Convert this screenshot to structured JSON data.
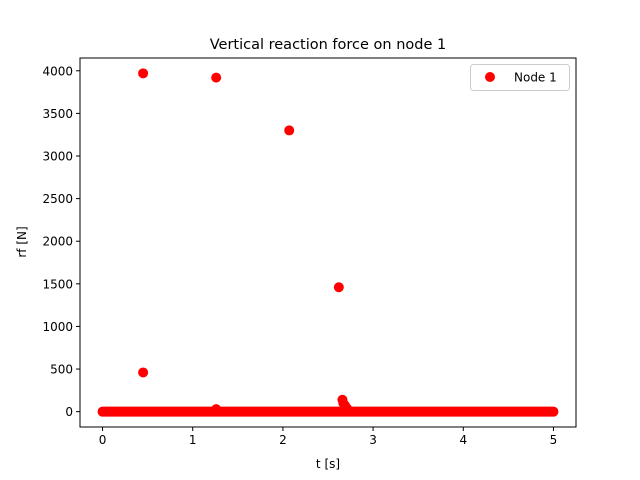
{
  "chart_data": {
    "type": "scatter",
    "title": "Vertical reaction force on node 1",
    "xlabel": "t [s]",
    "ylabel": "rf [N]",
    "xlim": [
      -0.25,
      5.25
    ],
    "ylim": [
      -180,
      4150
    ],
    "xticks": [
      0,
      1,
      2,
      3,
      4,
      5
    ],
    "xtick_labels": [
      "0",
      "1",
      "2",
      "3",
      "4",
      "5"
    ],
    "yticks": [
      0,
      500,
      1000,
      1500,
      2000,
      2500,
      3000,
      3500,
      4000
    ],
    "ytick_labels": [
      "0",
      "500",
      "1000",
      "1500",
      "2000",
      "2500",
      "3000",
      "3500",
      "4000"
    ],
    "grid": false,
    "legend_position": "top-right",
    "series": [
      {
        "name": "Node 1",
        "color": "#ff0000",
        "marker": "circle",
        "baseline": {
          "x_start": 0.0,
          "x_end": 5.0,
          "y": 0
        },
        "points": [
          {
            "x": 0.45,
            "y": 3970
          },
          {
            "x": 1.26,
            "y": 3920
          },
          {
            "x": 2.07,
            "y": 3300
          },
          {
            "x": 2.62,
            "y": 1460
          },
          {
            "x": 0.45,
            "y": 460
          },
          {
            "x": 1.26,
            "y": 30
          },
          {
            "x": 2.66,
            "y": 140
          },
          {
            "x": 2.67,
            "y": 100
          },
          {
            "x": 2.69,
            "y": 70
          },
          {
            "x": 2.71,
            "y": 40
          }
        ]
      }
    ]
  }
}
